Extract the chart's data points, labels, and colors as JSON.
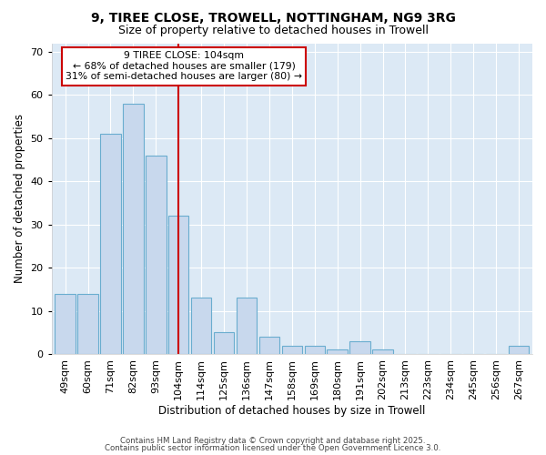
{
  "title_line1": "9, TIREE CLOSE, TROWELL, NOTTINGHAM, NG9 3RG",
  "title_line2": "Size of property relative to detached houses in Trowell",
  "xlabel": "Distribution of detached houses by size in Trowell",
  "ylabel": "Number of detached properties",
  "categories": [
    "49sqm",
    "60sqm",
    "71sqm",
    "82sqm",
    "93sqm",
    "104sqm",
    "114sqm",
    "125sqm",
    "136sqm",
    "147sqm",
    "158sqm",
    "169sqm",
    "180sqm",
    "191sqm",
    "202sqm",
    "213sqm",
    "223sqm",
    "234sqm",
    "245sqm",
    "256sqm",
    "267sqm"
  ],
  "values": [
    14,
    14,
    51,
    58,
    46,
    32,
    13,
    5,
    13,
    4,
    2,
    2,
    1,
    3,
    1,
    0,
    0,
    0,
    0,
    0,
    2
  ],
  "bar_color": "#c8d8ed",
  "bar_edge_color": "#6aadcf",
  "highlight_line_index": 5,
  "highlight_line_color": "#cc0000",
  "ylim": [
    0,
    72
  ],
  "yticks": [
    0,
    10,
    20,
    30,
    40,
    50,
    60,
    70
  ],
  "annotation_text": "9 TIREE CLOSE: 104sqm\n← 68% of detached houses are smaller (179)\n31% of semi-detached houses are larger (80) →",
  "annotation_box_color": "#cc0000",
  "background_color": "#dce9f5",
  "footer_line1": "Contains HM Land Registry data © Crown copyright and database right 2025.",
  "footer_line2": "Contains public sector information licensed under the Open Government Licence 3.0."
}
